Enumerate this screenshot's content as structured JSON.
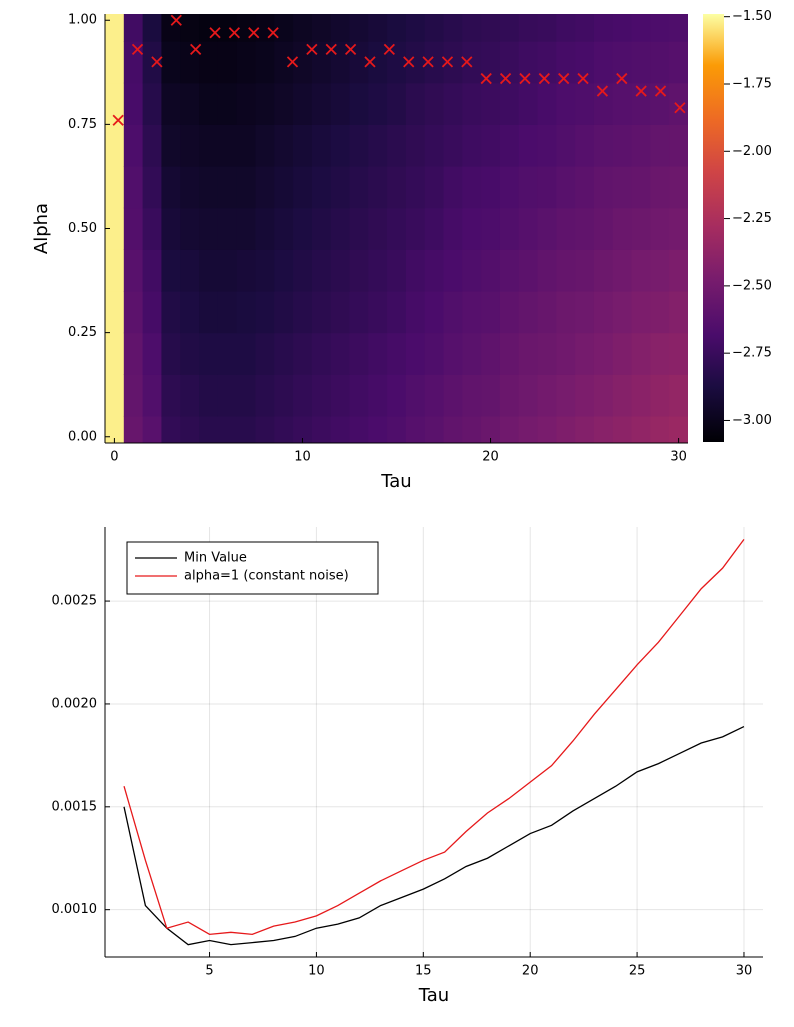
{
  "chart_data": [
    {
      "type": "heatmap",
      "xlabel": "Tau",
      "ylabel": "Alpha",
      "colormap": "inferno",
      "x": [
        0,
        1,
        2,
        3,
        4,
        5,
        6,
        7,
        8,
        9,
        10,
        11,
        12,
        13,
        14,
        15,
        16,
        17,
        18,
        19,
        20,
        21,
        22,
        23,
        24,
        25,
        26,
        27,
        28,
        29,
        30
      ],
      "y": [
        0,
        0.1,
        0.2,
        0.3,
        0.4,
        0.5,
        0.6,
        0.7,
        0.8,
        0.9,
        1.0
      ],
      "z": [
        [
          -1.52,
          -1.52,
          -1.52,
          -1.52,
          -1.52,
          -1.52,
          -1.52,
          -1.52,
          -1.52,
          -1.52,
          -1.52
        ],
        [
          -2.55,
          -2.57,
          -2.58,
          -2.6,
          -2.62,
          -2.64,
          -2.65,
          -2.67,
          -2.69,
          -2.7,
          -2.72
        ],
        [
          -2.62,
          -2.65,
          -2.67,
          -2.7,
          -2.72,
          -2.75,
          -2.78,
          -2.8,
          -2.83,
          -2.85,
          -2.88
        ],
        [
          -2.78,
          -2.8,
          -2.83,
          -2.85,
          -2.88,
          -2.9,
          -2.92,
          -2.95,
          -2.97,
          -3.0,
          -3.02
        ],
        [
          -2.8,
          -2.82,
          -2.85,
          -2.87,
          -2.89,
          -2.92,
          -2.94,
          -2.96,
          -2.98,
          -3.01,
          -3.03
        ],
        [
          -2.82,
          -2.84,
          -2.86,
          -2.89,
          -2.91,
          -2.93,
          -2.95,
          -2.97,
          -3.0,
          -3.02,
          -3.04
        ],
        [
          -2.82,
          -2.84,
          -2.86,
          -2.89,
          -2.91,
          -2.93,
          -2.95,
          -2.97,
          -3.0,
          -3.02,
          -3.04
        ],
        [
          -2.82,
          -2.84,
          -2.86,
          -2.88,
          -2.9,
          -2.93,
          -2.95,
          -2.97,
          -2.99,
          -3.01,
          -3.03
        ],
        [
          -2.8,
          -2.82,
          -2.84,
          -2.87,
          -2.89,
          -2.91,
          -2.93,
          -2.95,
          -2.98,
          -3.0,
          -3.02
        ],
        [
          -2.78,
          -2.8,
          -2.82,
          -2.85,
          -2.87,
          -2.89,
          -2.91,
          -2.93,
          -2.96,
          -2.98,
          -3.0
        ],
        [
          -2.76,
          -2.78,
          -2.8,
          -2.83,
          -2.85,
          -2.87,
          -2.89,
          -2.91,
          -2.94,
          -2.96,
          -2.98
        ],
        [
          -2.74,
          -2.76,
          -2.78,
          -2.81,
          -2.83,
          -2.85,
          -2.87,
          -2.89,
          -2.92,
          -2.94,
          -2.96
        ],
        [
          -2.72,
          -2.74,
          -2.76,
          -2.79,
          -2.81,
          -2.83,
          -2.85,
          -2.87,
          -2.9,
          -2.92,
          -2.94
        ],
        [
          -2.7,
          -2.72,
          -2.74,
          -2.77,
          -2.79,
          -2.81,
          -2.83,
          -2.85,
          -2.88,
          -2.9,
          -2.92
        ],
        [
          -2.68,
          -2.7,
          -2.72,
          -2.75,
          -2.77,
          -2.79,
          -2.81,
          -2.83,
          -2.86,
          -2.88,
          -2.9
        ],
        [
          -2.66,
          -2.68,
          -2.7,
          -2.73,
          -2.75,
          -2.77,
          -2.79,
          -2.81,
          -2.84,
          -2.86,
          -2.88
        ],
        [
          -2.63,
          -2.65,
          -2.68,
          -2.7,
          -2.72,
          -2.75,
          -2.77,
          -2.79,
          -2.81,
          -2.84,
          -2.86
        ],
        [
          -2.61,
          -2.63,
          -2.66,
          -2.68,
          -2.7,
          -2.73,
          -2.75,
          -2.77,
          -2.79,
          -2.82,
          -2.84
        ],
        [
          -2.58,
          -2.6,
          -2.63,
          -2.65,
          -2.68,
          -2.7,
          -2.72,
          -2.75,
          -2.77,
          -2.8,
          -2.82
        ],
        [
          -2.56,
          -2.58,
          -2.61,
          -2.63,
          -2.66,
          -2.68,
          -2.7,
          -2.73,
          -2.75,
          -2.78,
          -2.8
        ],
        [
          -2.54,
          -2.57,
          -2.59,
          -2.62,
          -2.64,
          -2.67,
          -2.69,
          -2.72,
          -2.74,
          -2.77,
          -2.79
        ],
        [
          -2.51,
          -2.54,
          -2.56,
          -2.59,
          -2.62,
          -2.65,
          -2.67,
          -2.7,
          -2.73,
          -2.75,
          -2.78
        ],
        [
          -2.49,
          -2.52,
          -2.54,
          -2.57,
          -2.6,
          -2.63,
          -2.65,
          -2.68,
          -2.71,
          -2.73,
          -2.76
        ],
        [
          -2.47,
          -2.5,
          -2.53,
          -2.55,
          -2.58,
          -2.61,
          -2.64,
          -2.67,
          -2.69,
          -2.72,
          -2.75
        ],
        [
          -2.45,
          -2.48,
          -2.51,
          -2.53,
          -2.56,
          -2.59,
          -2.62,
          -2.65,
          -2.67,
          -2.7,
          -2.73
        ],
        [
          -2.43,
          -2.46,
          -2.49,
          -2.52,
          -2.55,
          -2.58,
          -2.6,
          -2.63,
          -2.66,
          -2.69,
          -2.72
        ],
        [
          -2.41,
          -2.44,
          -2.47,
          -2.5,
          -2.53,
          -2.56,
          -2.58,
          -2.61,
          -2.64,
          -2.67,
          -2.7
        ],
        [
          -2.39,
          -2.42,
          -2.45,
          -2.48,
          -2.51,
          -2.54,
          -2.57,
          -2.6,
          -2.63,
          -2.66,
          -2.69
        ],
        [
          -2.37,
          -2.4,
          -2.43,
          -2.46,
          -2.49,
          -2.53,
          -2.56,
          -2.59,
          -2.62,
          -2.65,
          -2.68
        ],
        [
          -2.35,
          -2.38,
          -2.41,
          -2.45,
          -2.48,
          -2.51,
          -2.54,
          -2.57,
          -2.61,
          -2.64,
          -2.67
        ],
        [
          -2.33,
          -2.36,
          -2.4,
          -2.43,
          -2.46,
          -2.5,
          -2.53,
          -2.56,
          -2.59,
          -2.63,
          -2.66
        ]
      ],
      "clim": [
        -3.08,
        -1.49
      ],
      "cticks": [
        {
          "value": -1.5,
          "label": "−1.50"
        },
        {
          "value": -1.75,
          "label": "−1.75"
        },
        {
          "value": -2.0,
          "label": "−2.00"
        },
        {
          "value": -2.25,
          "label": "−2.25"
        },
        {
          "value": -2.5,
          "label": "−2.50"
        },
        {
          "value": -2.75,
          "label": "−2.75"
        },
        {
          "value": -3.0,
          "label": "−3.00"
        }
      ],
      "xlim": [
        -0.5,
        30.5
      ],
      "ylim": [
        -0.015,
        1.015
      ],
      "xticks": [
        0,
        10,
        20,
        30
      ],
      "yticks": [
        {
          "value": 0,
          "label": "0.00"
        },
        {
          "value": 0.25,
          "label": "0.25"
        },
        {
          "value": 0.5,
          "label": "0.50"
        },
        {
          "value": 0.75,
          "label": "0.75"
        },
        {
          "value": 1,
          "label": "1.00"
        }
      ],
      "markers": {
        "color": "#e6191b",
        "x": [
          0.2,
          1.23,
          2.26,
          3.29,
          4.32,
          5.35,
          6.38,
          7.41,
          8.44,
          9.47,
          10.5,
          11.53,
          12.56,
          13.59,
          14.62,
          15.65,
          16.68,
          17.71,
          18.74,
          19.77,
          20.8,
          21.83,
          22.86,
          23.89,
          24.92,
          25.95,
          26.98,
          28.01,
          29.04,
          30.07
        ],
        "y": [
          0.76,
          0.93,
          0.9,
          1.0,
          0.93,
          0.97,
          0.97,
          0.97,
          0.97,
          0.9,
          0.93,
          0.93,
          0.93,
          0.9,
          0.93,
          0.9,
          0.9,
          0.9,
          0.9,
          0.86,
          0.86,
          0.86,
          0.86,
          0.86,
          0.86,
          0.83,
          0.86,
          0.83,
          0.83,
          0.79
        ]
      }
    },
    {
      "type": "line",
      "xlabel": "Tau",
      "x": [
        1,
        2,
        3,
        4,
        5,
        6,
        7,
        8,
        9,
        10,
        11,
        12,
        13,
        14,
        15,
        16,
        17,
        18,
        19,
        20,
        21,
        22,
        23,
        24,
        25,
        26,
        27,
        28,
        29,
        30
      ],
      "series": [
        {
          "name": "Min Value",
          "color": "#000000",
          "values": [
            0.0015,
            0.00102,
            0.00091,
            0.00083,
            0.00085,
            0.00083,
            0.00084,
            0.00085,
            0.00087,
            0.00091,
            0.00093,
            0.00096,
            0.00102,
            0.00106,
            0.0011,
            0.00115,
            0.00121,
            0.00125,
            0.00131,
            0.00137,
            0.00141,
            0.00148,
            0.00154,
            0.0016,
            0.00167,
            0.00171,
            0.00176,
            0.00181,
            0.00184,
            0.00189
          ]
        },
        {
          "name": "alpha=1 (constant noise)",
          "color": "#e6191b",
          "values": [
            0.0016,
            0.00124,
            0.00091,
            0.00094,
            0.00088,
            0.00089,
            0.00088,
            0.00092,
            0.00094,
            0.00097,
            0.00102,
            0.00108,
            0.00114,
            0.00119,
            0.00124,
            0.00128,
            0.00138,
            0.00147,
            0.00154,
            0.00162,
            0.0017,
            0.00182,
            0.00195,
            0.00207,
            0.00219,
            0.0023,
            0.00243,
            0.00256,
            0.00266,
            0.0028
          ]
        }
      ],
      "xlim": [
        0.11,
        30.89
      ],
      "ylim": [
        0.00077,
        0.00286
      ],
      "xticks": [
        5,
        10,
        15,
        20,
        25,
        30
      ],
      "yticks": [
        {
          "value": 0.001,
          "label": "0.0010"
        },
        {
          "value": 0.0015,
          "label": "0.0015"
        },
        {
          "value": 0.002,
          "label": "0.0020"
        },
        {
          "value": 0.0025,
          "label": "0.0025"
        }
      ],
      "grid": true,
      "legend": "top-left"
    }
  ]
}
